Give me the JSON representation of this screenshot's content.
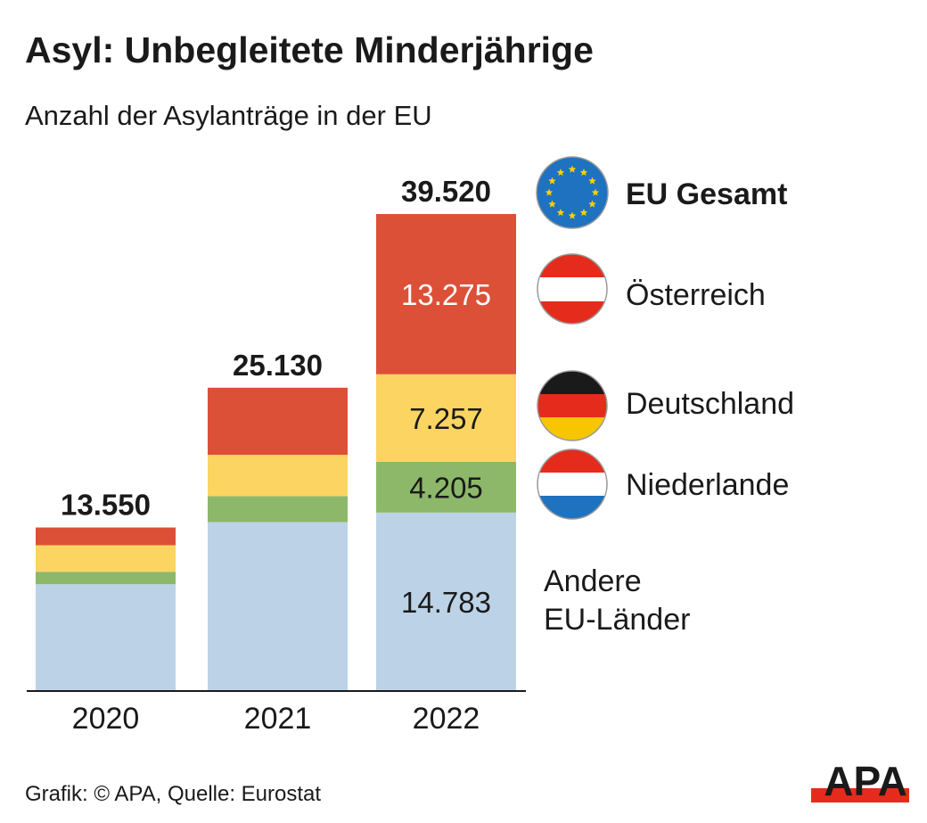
{
  "chart_data": {
    "type": "stacked_bar",
    "title": "Asyl: Unbegleitete Minderjährige",
    "subtitle": "Anzahl der Asylanträge in der EU",
    "categories": [
      "2020",
      "2021",
      "2022"
    ],
    "series": [
      {
        "name": "Andere EU-Länder",
        "color": "#bcd2e6",
        "values": [
          8850,
          14000,
          14783
        ],
        "value_labels": [
          null,
          null,
          "14.783"
        ]
      },
      {
        "name": "Niederlande",
        "color": "#8db86a",
        "values": [
          1030,
          2150,
          4205
        ],
        "value_labels": [
          null,
          null,
          "4.205"
        ]
      },
      {
        "name": "Deutschland",
        "color": "#fcd462",
        "values": [
          2200,
          3420,
          7257
        ],
        "value_labels": [
          null,
          null,
          "7.257"
        ]
      },
      {
        "name": "Österreich",
        "color": "#dc5038",
        "values": [
          1470,
          5560,
          13275
        ],
        "value_labels": [
          null,
          null,
          "13.275"
        ]
      }
    ],
    "totals": {
      "name": "EU Gesamt",
      "values": [
        13550,
        25130,
        39520
      ],
      "value_labels": [
        "13.550",
        "25.130",
        "39.520"
      ]
    },
    "source": "Grafik: © APA, Quelle: Eurostat",
    "logo": "APA"
  }
}
